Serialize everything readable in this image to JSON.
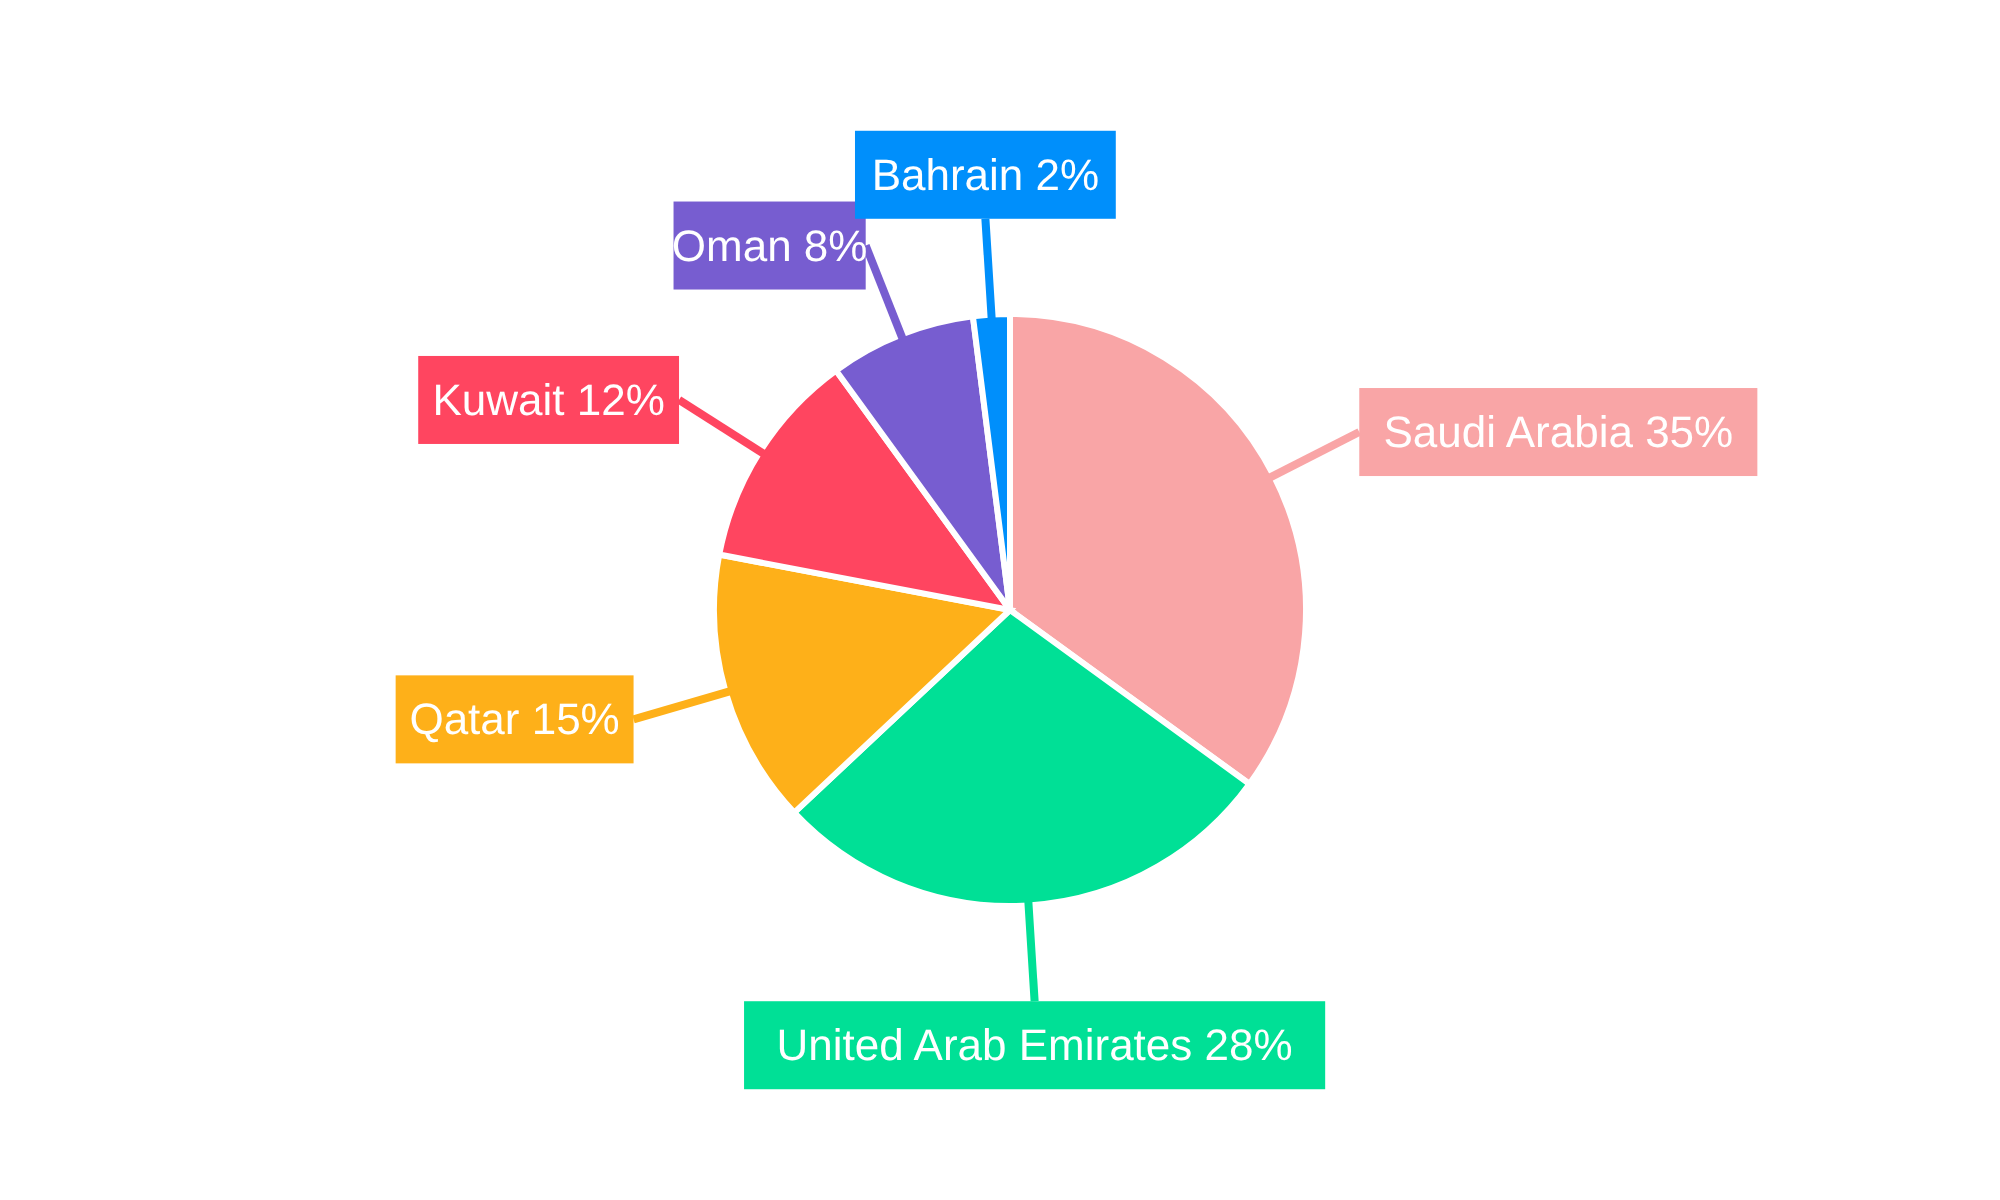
{
  "chart_data": {
    "type": "pie",
    "categories": [
      "Saudi Arabia",
      "United Arab Emirates",
      "Qatar",
      "Kuwait",
      "Oman",
      "Bahrain"
    ],
    "values": [
      35,
      28,
      15,
      12,
      8,
      2
    ],
    "value_labels": [
      "35%",
      "28%",
      "15%",
      "12%",
      "8%",
      "2%"
    ],
    "colors": [
      "#f9a5a6",
      "#00e096",
      "#feb019",
      "#ff4560",
      "#775dd0",
      "#008ffb"
    ]
  }
}
